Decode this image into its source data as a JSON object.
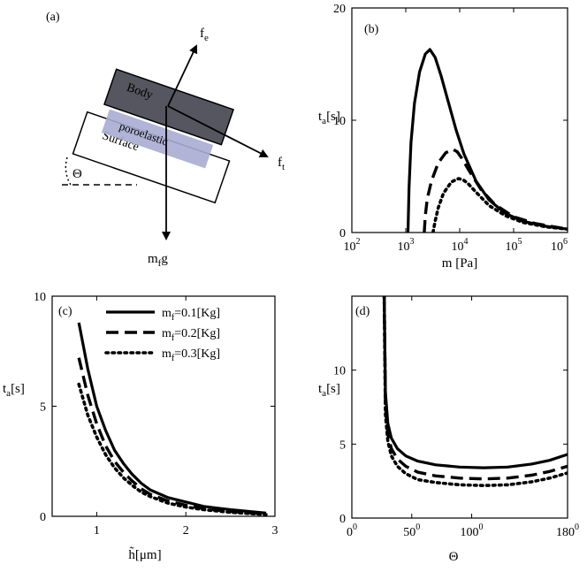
{
  "panel_a": {
    "label": "(a)",
    "body_label": "Body",
    "layer_label": "poroelastic",
    "surface_label": "Surface",
    "angle_symbol": "Θ",
    "force_e": "f",
    "force_e_sub": "e",
    "force_t": "f",
    "force_t_sub": "t",
    "weight_m": "m",
    "weight_sub": "f",
    "weight_g": "g",
    "colors": {
      "body": "#55565f",
      "layer": "#a8acd1",
      "surface": "#ffffff"
    }
  },
  "chart_data": [
    {
      "panel": "(b)",
      "type": "line",
      "xscale": "log",
      "xlim": [
        100,
        1000000
      ],
      "ylim": [
        0,
        20
      ],
      "xlabel": "m [Pa]",
      "ylabel_main": "t",
      "ylabel_sub": "a",
      "ylabel_unit": "[s]",
      "xticks": [
        {
          "base": "10",
          "exp": "2"
        },
        {
          "base": "10",
          "exp": "3"
        },
        {
          "base": "10",
          "exp": "4"
        },
        {
          "base": "10",
          "exp": "5"
        },
        {
          "base": "10",
          "exp": "6"
        }
      ],
      "yticks": [
        "0",
        "10",
        "20"
      ],
      "series": [
        {
          "style": "solid",
          "x": [
            1100,
            1150,
            1250,
            1450,
            1800,
            2300,
            2800,
            3500,
            4500,
            6000,
            8500,
            12000,
            20000,
            35000,
            70000,
            150000,
            400000,
            1000000
          ],
          "y": [
            0,
            4,
            8,
            11.5,
            14.3,
            15.9,
            16.3,
            15.6,
            14.0,
            11.8,
            9.2,
            7.0,
            4.6,
            2.9,
            1.7,
            1.0,
            0.55,
            0.3
          ]
        },
        {
          "style": "dash",
          "x": [
            2200,
            2300,
            2500,
            3000,
            4000,
            5500,
            7500,
            9000,
            11000,
            15000,
            25000,
            45000,
            100000,
            250000,
            1000000
          ],
          "y": [
            0,
            1.5,
            3.0,
            4.6,
            6.2,
            7.1,
            7.4,
            7.2,
            6.6,
            5.5,
            3.8,
            2.5,
            1.4,
            0.8,
            0.3
          ]
        },
        {
          "style": "dot",
          "x": [
            3200,
            3500,
            4000,
            5000,
            7000,
            9500,
            11500,
            14000,
            20000,
            35000,
            70000,
            150000,
            400000,
            1000000
          ],
          "y": [
            0,
            1.0,
            2.2,
            3.5,
            4.5,
            4.8,
            4.7,
            4.4,
            3.6,
            2.4,
            1.5,
            0.9,
            0.5,
            0.3
          ]
        }
      ]
    },
    {
      "panel": "(c)",
      "type": "line",
      "xlim": [
        0.5,
        3
      ],
      "ylim": [
        0,
        10
      ],
      "xlabel": "h̃[μm]",
      "ylabel_main": "t",
      "ylabel_sub": "a",
      "ylabel_unit": "[s]",
      "xticks": [
        "1",
        "2",
        "3"
      ],
      "yticks": [
        "0",
        "5",
        "10"
      ],
      "series": [
        {
          "name_main": "m",
          "name_sub": "f",
          "name_rest": "=0.1[Kg]",
          "style": "solid",
          "x": [
            0.8,
            0.9,
            1.0,
            1.1,
            1.2,
            1.3,
            1.4,
            1.5,
            1.6,
            1.8,
            2.0,
            2.2,
            2.5,
            2.9
          ],
          "y": [
            8.8,
            6.7,
            5.0,
            3.9,
            3.0,
            2.4,
            1.9,
            1.5,
            1.2,
            0.85,
            0.65,
            0.45,
            0.3,
            0.15
          ]
        },
        {
          "name_main": "m",
          "name_sub": "f",
          "name_rest": "=0.2[Kg]",
          "style": "dash",
          "x": [
            0.8,
            0.9,
            1.0,
            1.1,
            1.2,
            1.3,
            1.4,
            1.5,
            1.6,
            1.8,
            2.0,
            2.2,
            2.5,
            2.9
          ],
          "y": [
            7.2,
            5.5,
            4.2,
            3.2,
            2.5,
            2.0,
            1.6,
            1.25,
            1.0,
            0.7,
            0.5,
            0.35,
            0.22,
            0.1
          ]
        },
        {
          "name_main": "m",
          "name_sub": "f",
          "name_rest": "=0.3[Kg]",
          "style": "dot",
          "x": [
            0.8,
            0.9,
            1.0,
            1.1,
            1.2,
            1.3,
            1.4,
            1.5,
            1.6,
            1.8,
            2.0,
            2.2,
            2.5,
            2.9
          ],
          "y": [
            6.0,
            4.6,
            3.6,
            2.8,
            2.2,
            1.75,
            1.4,
            1.1,
            0.9,
            0.6,
            0.42,
            0.3,
            0.18,
            0.08
          ]
        }
      ]
    },
    {
      "panel": "(d)",
      "type": "line",
      "xlim": [
        0,
        180
      ],
      "ylim": [
        0,
        15
      ],
      "xlabel": "Θ",
      "ylabel_main": "t",
      "ylabel_sub": "a",
      "ylabel_unit": "[s]",
      "xticks": [
        {
          "base": "0",
          "exp": "0"
        },
        {
          "base": "50",
          "exp": "0"
        },
        {
          "base": "100",
          "exp": "0"
        },
        {
          "base": "180",
          "exp": "0"
        }
      ],
      "yticks": [
        "0",
        "5",
        "10"
      ],
      "series": [
        {
          "style": "solid",
          "x": [
            27,
            28,
            30,
            33,
            38,
            45,
            55,
            70,
            90,
            110,
            130,
            150,
            165,
            180
          ],
          "y": [
            15,
            8.5,
            6.4,
            5.4,
            4.7,
            4.2,
            3.85,
            3.6,
            3.45,
            3.4,
            3.45,
            3.65,
            3.9,
            4.3
          ]
        },
        {
          "style": "dash",
          "x": [
            27,
            28,
            30,
            33,
            38,
            45,
            55,
            70,
            90,
            110,
            130,
            150,
            165,
            180
          ],
          "y": [
            15,
            7.6,
            5.7,
            4.7,
            4.0,
            3.5,
            3.1,
            2.85,
            2.7,
            2.65,
            2.7,
            2.9,
            3.15,
            3.5
          ]
        },
        {
          "style": "dot",
          "x": [
            27,
            28,
            30,
            33,
            38,
            45,
            55,
            70,
            90,
            110,
            130,
            150,
            165,
            180
          ],
          "y": [
            15,
            7.0,
            5.2,
            4.2,
            3.5,
            3.0,
            2.6,
            2.4,
            2.25,
            2.2,
            2.25,
            2.45,
            2.7,
            3.05
          ]
        }
      ]
    }
  ]
}
